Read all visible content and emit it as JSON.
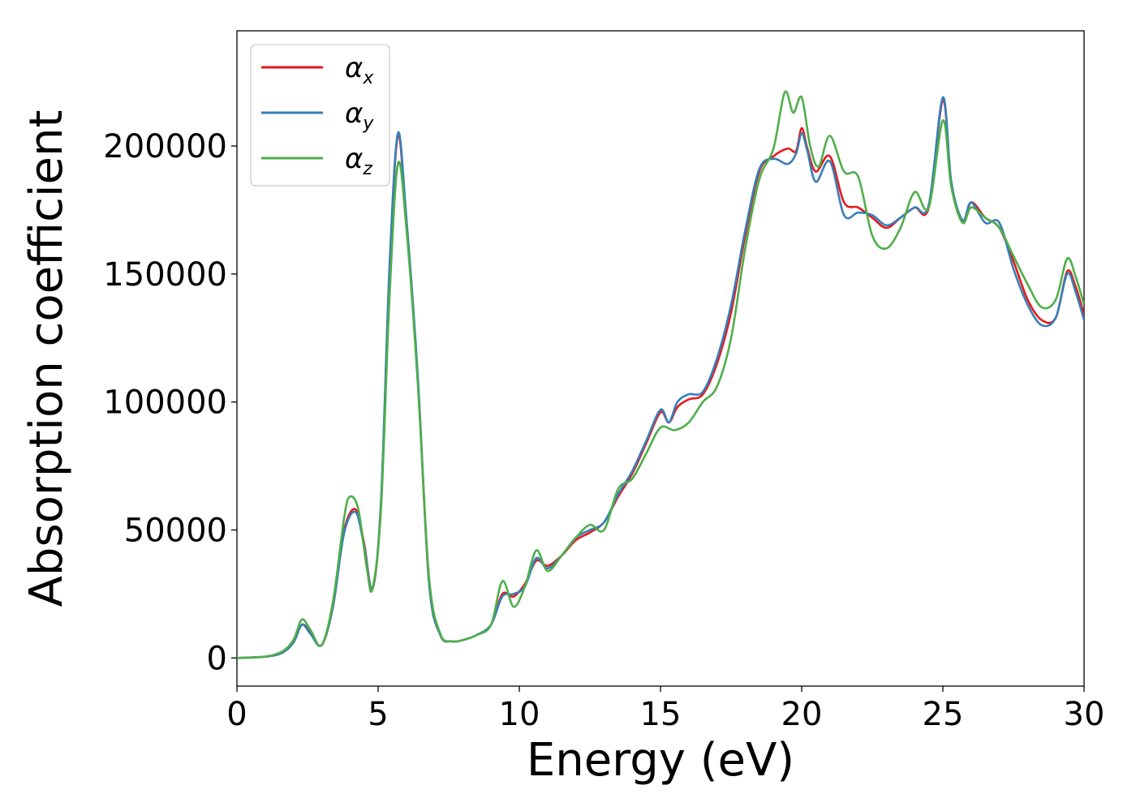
{
  "chart_data": {
    "type": "line",
    "xlabel": "Energy (eV)",
    "ylabel": "Absorption coefficient",
    "xlim": [
      0,
      30
    ],
    "ylim": [
      -11000,
      245000
    ],
    "xticks": [
      0,
      5,
      10,
      15,
      20,
      25,
      30
    ],
    "yticks": [
      0,
      50000,
      100000,
      150000,
      200000
    ],
    "grid": false,
    "legend_position": "top-left",
    "series": [
      {
        "name": "αx",
        "name_main": "α",
        "name_sub": "x",
        "color": "#e41a1c",
        "x": [
          0,
          1,
          1.6,
          2.0,
          2.3,
          2.6,
          3.0,
          3.4,
          3.8,
          4.2,
          4.5,
          4.8,
          5.1,
          5.4,
          5.7,
          6.0,
          6.4,
          6.8,
          7.2,
          7.6,
          8.0,
          8.5,
          9.0,
          9.4,
          9.8,
          10.2,
          10.6,
          11.0,
          11.5,
          12.0,
          12.5,
          13.0,
          13.5,
          14.0,
          14.5,
          15.0,
          15.3,
          15.6,
          16.0,
          16.5,
          17.0,
          17.5,
          18.0,
          18.5,
          19.0,
          19.5,
          19.8,
          20.0,
          20.2,
          20.5,
          21.0,
          21.5,
          22.0,
          22.5,
          23.0,
          23.5,
          24.0,
          24.5,
          25.0,
          25.3,
          25.7,
          26.0,
          26.5,
          27.0,
          27.5,
          28.0,
          28.5,
          29.0,
          29.4,
          29.7,
          30.0
        ],
        "y": [
          0,
          500,
          2000,
          6000,
          13000,
          10000,
          5000,
          20000,
          50000,
          58000,
          45000,
          27000,
          60000,
          150000,
          204000,
          170000,
          110000,
          30000,
          9000,
          6500,
          7000,
          9000,
          13000,
          25000,
          24000,
          29000,
          38000,
          36000,
          40000,
          46000,
          49000,
          53000,
          63000,
          72000,
          84000,
          96000,
          92000,
          98000,
          101000,
          103000,
          115000,
          135000,
          165000,
          190000,
          196000,
          199000,
          198000,
          207000,
          199000,
          190000,
          196000,
          178000,
          176000,
          172000,
          168000,
          172000,
          176000,
          176000,
          218000,
          185000,
          170000,
          178000,
          172000,
          168000,
          155000,
          140000,
          132000,
          133000,
          151000,
          145000,
          134000
        ]
      },
      {
        "name": "αy",
        "name_main": "α",
        "name_sub": "y",
        "color": "#377eb8",
        "x": [
          0,
          1,
          1.6,
          2.0,
          2.3,
          2.6,
          3.0,
          3.4,
          3.8,
          4.2,
          4.5,
          4.8,
          5.1,
          5.4,
          5.7,
          6.0,
          6.4,
          6.8,
          7.2,
          7.6,
          8.0,
          8.5,
          9.0,
          9.4,
          9.8,
          10.2,
          10.6,
          11.0,
          11.5,
          12.0,
          12.5,
          13.0,
          13.5,
          14.0,
          14.5,
          15.0,
          15.3,
          15.6,
          16.0,
          16.5,
          17.0,
          17.5,
          18.0,
          18.5,
          19.0,
          19.5,
          19.8,
          20.0,
          20.2,
          20.5,
          21.0,
          21.5,
          22.0,
          22.5,
          23.0,
          23.5,
          24.0,
          24.5,
          25.0,
          25.3,
          25.7,
          26.0,
          26.5,
          27.0,
          27.5,
          28.0,
          28.5,
          29.0,
          29.4,
          29.7,
          30.0
        ],
        "y": [
          0,
          500,
          2000,
          6000,
          13000,
          9500,
          5000,
          20000,
          49000,
          57000,
          44000,
          27000,
          61000,
          152000,
          205000,
          172000,
          111000,
          30000,
          9000,
          6500,
          7000,
          9000,
          13000,
          24000,
          25000,
          28000,
          39000,
          35000,
          40000,
          47000,
          50000,
          53000,
          64000,
          73000,
          85000,
          97000,
          92000,
          100000,
          103000,
          104000,
          117000,
          138000,
          167000,
          191000,
          195000,
          193000,
          197000,
          205000,
          198000,
          186000,
          194000,
          173000,
          174000,
          173000,
          169000,
          172000,
          176000,
          177000,
          219000,
          186000,
          171000,
          178000,
          170000,
          170000,
          152000,
          138000,
          130000,
          133000,
          150000,
          143000,
          132000
        ]
      },
      {
        "name": "αz",
        "name_main": "α",
        "name_sub": "z",
        "color": "#4daf4a",
        "x": [
          0,
          1,
          1.6,
          2.0,
          2.3,
          2.6,
          3.0,
          3.4,
          3.8,
          4.0,
          4.3,
          4.6,
          4.8,
          5.1,
          5.4,
          5.7,
          6.0,
          6.4,
          6.8,
          7.2,
          7.6,
          8.0,
          8.5,
          9.0,
          9.4,
          9.8,
          10.2,
          10.6,
          11.0,
          11.5,
          12.0,
          12.5,
          13.0,
          13.5,
          14.0,
          14.5,
          15.0,
          15.5,
          16.0,
          16.5,
          17.0,
          17.5,
          18.0,
          18.5,
          19.0,
          19.4,
          19.7,
          20.0,
          20.3,
          20.6,
          21.0,
          21.5,
          22.0,
          22.5,
          23.0,
          23.5,
          24.0,
          24.5,
          25.0,
          25.3,
          25.7,
          26.0,
          26.5,
          27.0,
          27.5,
          28.0,
          28.5,
          29.0,
          29.4,
          29.7,
          30.0
        ],
        "y": [
          0,
          500,
          2500,
          7000,
          15000,
          11000,
          5000,
          22000,
          55000,
          63000,
          58000,
          35000,
          27000,
          58000,
          140000,
          193000,
          168000,
          108000,
          32000,
          9500,
          6500,
          7000,
          9000,
          13000,
          30000,
          20000,
          28000,
          42000,
          34000,
          40000,
          47000,
          52000,
          50000,
          66000,
          70000,
          80000,
          90000,
          89000,
          92000,
          100000,
          106000,
          125000,
          160000,
          187000,
          199000,
          221000,
          213000,
          219000,
          200000,
          192000,
          204000,
          190000,
          188000,
          165000,
          160000,
          168000,
          182000,
          176000,
          210000,
          184000,
          170000,
          176000,
          172000,
          168000,
          157000,
          146000,
          137000,
          140000,
          156000,
          149000,
          138000
        ]
      }
    ]
  }
}
